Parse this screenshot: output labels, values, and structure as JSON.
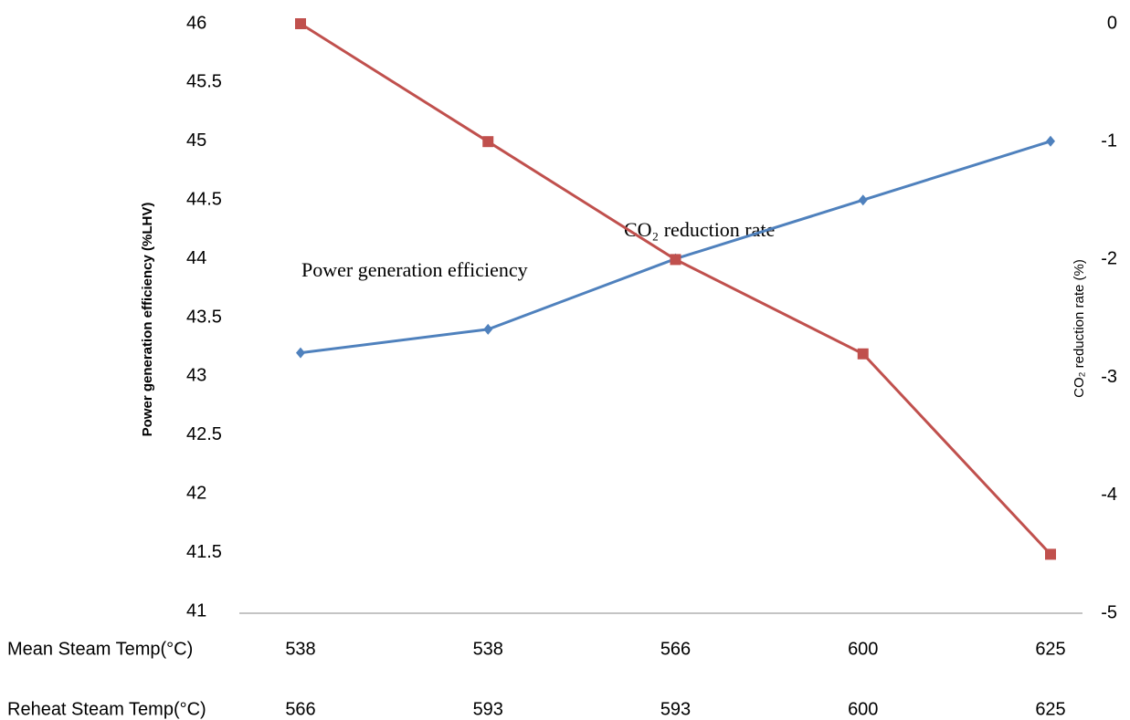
{
  "chart_data": {
    "type": "line",
    "y_label": "Power generation efficiency (%LHV)",
    "y2_label": "CO₂ reduction rate (%)",
    "category_rows": [
      {
        "name": "Mean Steam Temp(°C)",
        "labels": [
          "538",
          "538",
          "566",
          "600",
          "625"
        ]
      },
      {
        "name": "Reheat Steam Temp(°C)",
        "labels": [
          "566",
          "593",
          "593",
          "600",
          "625"
        ]
      }
    ],
    "annotations": [
      "Power generation efficiency",
      "CO₂ reduction rate"
    ],
    "series": [
      {
        "color": "#4f81bd",
        "marker": "diamond",
        "values": [
          43.2,
          43.4,
          44.0,
          44.5,
          45.0
        ]
      },
      {
        "color": "#c0504d",
        "marker": "square",
        "axis": "y2",
        "values": [
          0,
          -1,
          -2,
          -2.8,
          -4.5
        ]
      }
    ],
    "ylim": [
      41,
      46
    ],
    "yticks": [
      41,
      41.5,
      42,
      42.5,
      43,
      43.5,
      44,
      44.5,
      45,
      45.5,
      46
    ],
    "y2lim": [
      -5,
      0
    ],
    "y2ticks": [
      0,
      -1,
      -2,
      -3,
      -4,
      -5
    ],
    "grid": false
  }
}
